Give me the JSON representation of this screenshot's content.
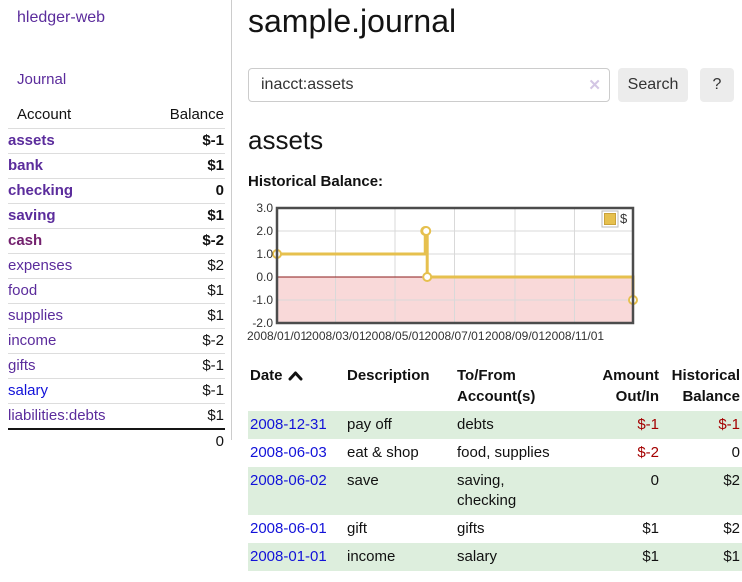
{
  "app": {
    "title": "hledger-web"
  },
  "sidebar": {
    "journal_link": "Journal",
    "accounts_table": {
      "account_header": "Account",
      "balance_header": "Balance",
      "rows": [
        {
          "name": "assets",
          "depth": 1,
          "bold": true,
          "name_class": "purple",
          "balance": "$-1",
          "balance_class": "neg-strong"
        },
        {
          "name": "bank",
          "depth": 2,
          "bold": true,
          "name_class": "purple",
          "balance": "$1",
          "balance_class": ""
        },
        {
          "name": "checking",
          "depth": 3,
          "bold": true,
          "name_class": "purple",
          "balance": "0",
          "balance_class": ""
        },
        {
          "name": "saving",
          "depth": 3,
          "bold": true,
          "name_class": "purple",
          "balance": "$1",
          "balance_class": ""
        },
        {
          "name": "cash",
          "depth": 2,
          "bold": true,
          "name_class": "maroon",
          "balance": "$-2",
          "balance_class": "neg-strong"
        },
        {
          "name": "expenses",
          "depth": 1,
          "bold": false,
          "name_class": "purple",
          "balance": "$2",
          "balance_class": ""
        },
        {
          "name": "food",
          "depth": 2,
          "bold": false,
          "name_class": "purple",
          "balance": "$1",
          "balance_class": ""
        },
        {
          "name": "supplies",
          "depth": 2,
          "bold": false,
          "name_class": "purple",
          "balance": "$1",
          "balance_class": ""
        },
        {
          "name": "income",
          "depth": 1,
          "bold": false,
          "name_class": "purple",
          "balance": "$-2",
          "balance_class": "neg-faded"
        },
        {
          "name": "gifts",
          "depth": 2,
          "bold": false,
          "name_class": "purple",
          "balance": "$-1",
          "balance_class": "neg-faded"
        },
        {
          "name": "salary",
          "depth": 2,
          "bold": false,
          "name_class": "blue",
          "balance": "$-1",
          "balance_class": "neg-faded"
        },
        {
          "name": "liabilities:debts",
          "depth": 1,
          "bold": false,
          "name_class": "purple",
          "balance": "$1",
          "balance_class": ""
        }
      ],
      "total": "0"
    }
  },
  "main": {
    "title": "sample.journal",
    "search": {
      "value": "inacct:assets",
      "clear_icon": "✕",
      "button_label": "Search",
      "help_label": "?"
    },
    "account_heading": "assets",
    "chart_label": "Historical Balance:"
  },
  "chart_data": {
    "type": "line",
    "title": "Historical Balance",
    "step": true,
    "series": [
      {
        "name": "$",
        "points": [
          {
            "date": "2008-01-01",
            "value": 1
          },
          {
            "date": "2008-06-01",
            "value": 2
          },
          {
            "date": "2008-06-02",
            "value": 2
          },
          {
            "date": "2008-06-03",
            "value": 0
          },
          {
            "date": "2008-12-31",
            "value": -1
          }
        ]
      }
    ],
    "x_range": [
      "2008-01-01",
      "2008-12-31"
    ],
    "x_ticks": [
      "2008/01/01",
      "2008/03/01",
      "2008/05/01",
      "2008/07/01",
      "2008/09/01",
      "2008/11/01"
    ],
    "y_ticks": [
      3.0,
      2.0,
      1.0,
      0.0,
      -1.0,
      -2.0
    ],
    "ylim": [
      -2,
      3
    ],
    "grid": true,
    "legend": {
      "label": "$",
      "position": "top-right"
    },
    "colors": {
      "series": "#e6c04e",
      "series_border": "#c9a23a",
      "negative_region": "#f9d9d9",
      "zero_line": "#8b1a1a",
      "grid": "#d9d9d9",
      "border": "#4c4c4c",
      "tick_text": "#333333"
    }
  },
  "transactions": {
    "headers": [
      "Date",
      "Description",
      "To/From\nAccount(s)",
      "Amount\nOut/In",
      "Historical\nBalance"
    ],
    "rows": [
      {
        "date": "2008-12-31",
        "description": "pay off",
        "accounts": "debts",
        "amount": "$-1",
        "balance": "$-1"
      },
      {
        "date": "2008-06-03",
        "description": "eat & shop",
        "accounts": "food, supplies",
        "amount": "$-2",
        "balance": "0"
      },
      {
        "date": "2008-06-02",
        "description": "save",
        "accounts": "saving,\nchecking",
        "amount": "0",
        "balance": "$2"
      },
      {
        "date": "2008-06-01",
        "description": "gift",
        "accounts": "gifts",
        "amount": "$1",
        "balance": "$2"
      },
      {
        "date": "2008-01-01",
        "description": "income",
        "accounts": "salary",
        "amount": "$1",
        "balance": "$1"
      }
    ]
  }
}
